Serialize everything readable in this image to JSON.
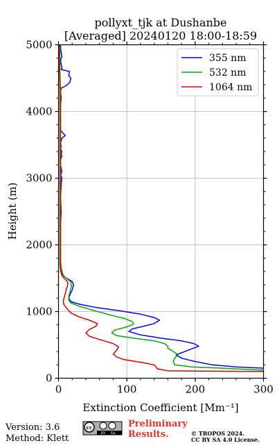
{
  "header": {
    "title_line1": "pollyxt_tjk at Dushanbe",
    "title_line2": "[Averaged] 20240120 18:00-18:59"
  },
  "footer": {
    "version": "Version: 3.6",
    "method": "Method: Klett",
    "preliminary_line1": "Preliminary",
    "preliminary_line2": "Results.",
    "license_line1": "© TROPOS 2024.",
    "license_line2": "CC BY SA 4.0 License.",
    "logo_icon": "cc-by-sa-icon",
    "logo_text_cc": "cc",
    "logo_text_by": "BY",
    "logo_text_sa": "SA"
  },
  "chart_data": {
    "type": "line",
    "orientation": "vertical-profile",
    "xlabel": "Extinction Coefficient [Mm⁻¹]",
    "ylabel": "Height (m)",
    "xlim": [
      0,
      300
    ],
    "ylim": [
      0,
      5000
    ],
    "xticks": [
      "0",
      "100",
      "200",
      "300"
    ],
    "yticks": [
      "0",
      "1000",
      "2000",
      "3000",
      "4000",
      "5000"
    ],
    "grid": true,
    "legend_position": "top-right",
    "series": [
      {
        "name": "355 nm",
        "color": "#0000ff",
        "points": [
          [
            300,
            150
          ],
          [
            260,
            170
          ],
          [
            225,
            200
          ],
          [
            200,
            250
          ],
          [
            180,
            300
          ],
          [
            172,
            350
          ],
          [
            185,
            400
          ],
          [
            205,
            480
          ],
          [
            198,
            520
          ],
          [
            180,
            560
          ],
          [
            150,
            600
          ],
          [
            120,
            650
          ],
          [
            103,
            700
          ],
          [
            108,
            740
          ],
          [
            125,
            780
          ],
          [
            140,
            820
          ],
          [
            148,
            870
          ],
          [
            140,
            910
          ],
          [
            120,
            960
          ],
          [
            90,
            1010
          ],
          [
            55,
            1060
          ],
          [
            30,
            1110
          ],
          [
            18,
            1150
          ],
          [
            15,
            1200
          ],
          [
            17,
            1260
          ],
          [
            20,
            1320
          ],
          [
            22,
            1400
          ],
          [
            20,
            1450
          ],
          [
            15,
            1480
          ],
          [
            9,
            1520
          ],
          [
            6,
            1560
          ],
          [
            4,
            1650
          ],
          [
            3,
            1750
          ],
          [
            3,
            1900
          ],
          [
            3,
            2100
          ],
          [
            3,
            2300
          ],
          [
            4,
            2500
          ],
          [
            3,
            2700
          ],
          [
            4,
            2900
          ],
          [
            5,
            3000
          ],
          [
            3,
            3050
          ],
          [
            5,
            3100
          ],
          [
            4,
            3150
          ],
          [
            3,
            3200
          ],
          [
            3,
            3280
          ],
          [
            5,
            3330
          ],
          [
            4,
            3360
          ],
          [
            5,
            3400
          ],
          [
            3,
            3440
          ],
          [
            4,
            3480
          ],
          [
            3,
            3530
          ],
          [
            5,
            3600
          ],
          [
            10,
            3640
          ],
          [
            6,
            3680
          ],
          [
            3,
            3720
          ],
          [
            3,
            3800
          ],
          [
            3,
            3900
          ],
          [
            3,
            4000
          ],
          [
            3,
            4100
          ],
          [
            4,
            4200
          ],
          [
            3,
            4300
          ],
          [
            4,
            4350
          ],
          [
            10,
            4380
          ],
          [
            15,
            4420
          ],
          [
            17,
            4450
          ],
          [
            18,
            4500
          ],
          [
            15,
            4540
          ],
          [
            16,
            4600
          ],
          [
            4,
            4630
          ],
          [
            5,
            4660
          ],
          [
            4,
            4700
          ],
          [
            3,
            4780
          ],
          [
            5,
            4820
          ],
          [
            4,
            4880
          ],
          [
            3,
            4950
          ],
          [
            3,
            5000
          ]
        ]
      },
      {
        "name": "532 nm",
        "color": "#00aa00",
        "points": [
          [
            300,
            120
          ],
          [
            240,
            150
          ],
          [
            195,
            170
          ],
          [
            170,
            200
          ],
          [
            168,
            250
          ],
          [
            170,
            300
          ],
          [
            175,
            350
          ],
          [
            168,
            400
          ],
          [
            160,
            450
          ],
          [
            160,
            480
          ],
          [
            155,
            520
          ],
          [
            140,
            560
          ],
          [
            110,
            600
          ],
          [
            85,
            640
          ],
          [
            78,
            680
          ],
          [
            82,
            720
          ],
          [
            100,
            770
          ],
          [
            110,
            810
          ],
          [
            108,
            850
          ],
          [
            95,
            900
          ],
          [
            75,
            950
          ],
          [
            50,
            1020
          ],
          [
            30,
            1080
          ],
          [
            18,
            1130
          ],
          [
            15,
            1170
          ],
          [
            15,
            1230
          ],
          [
            17,
            1300
          ],
          [
            19,
            1380
          ],
          [
            18,
            1440
          ],
          [
            14,
            1480
          ],
          [
            9,
            1520
          ],
          [
            5,
            1560
          ],
          [
            4,
            1650
          ],
          [
            3,
            1750
          ],
          [
            3,
            1900
          ],
          [
            3,
            2200
          ],
          [
            3,
            2500
          ],
          [
            3,
            2800
          ],
          [
            3,
            3100
          ],
          [
            3,
            3400
          ],
          [
            3,
            3700
          ],
          [
            3,
            4000
          ],
          [
            3,
            4300
          ],
          [
            2,
            4600
          ],
          [
            2,
            4800
          ],
          [
            2,
            5000
          ]
        ]
      },
      {
        "name": "1064 nm",
        "color": "#dd0000",
        "points": [
          [
            300,
            100
          ],
          [
            160,
            110
          ],
          [
            145,
            140
          ],
          [
            140,
            200
          ],
          [
            120,
            240
          ],
          [
            95,
            280
          ],
          [
            85,
            320
          ],
          [
            80,
            360
          ],
          [
            85,
            420
          ],
          [
            88,
            470
          ],
          [
            80,
            520
          ],
          [
            60,
            580
          ],
          [
            45,
            630
          ],
          [
            40,
            680
          ],
          [
            45,
            730
          ],
          [
            55,
            780
          ],
          [
            57,
            820
          ],
          [
            45,
            870
          ],
          [
            30,
            920
          ],
          [
            18,
            980
          ],
          [
            12,
            1050
          ],
          [
            8,
            1100
          ],
          [
            7,
            1150
          ],
          [
            8,
            1200
          ],
          [
            10,
            1270
          ],
          [
            12,
            1350
          ],
          [
            14,
            1420
          ],
          [
            12,
            1460
          ],
          [
            8,
            1500
          ],
          [
            5,
            1540
          ],
          [
            3,
            1600
          ],
          [
            2,
            1700
          ],
          [
            2,
            1900
          ],
          [
            2,
            2300
          ],
          [
            2,
            2800
          ],
          [
            2,
            3300
          ],
          [
            2,
            3800
          ],
          [
            2,
            4300
          ],
          [
            1,
            4800
          ],
          [
            1,
            5000
          ]
        ]
      }
    ]
  }
}
